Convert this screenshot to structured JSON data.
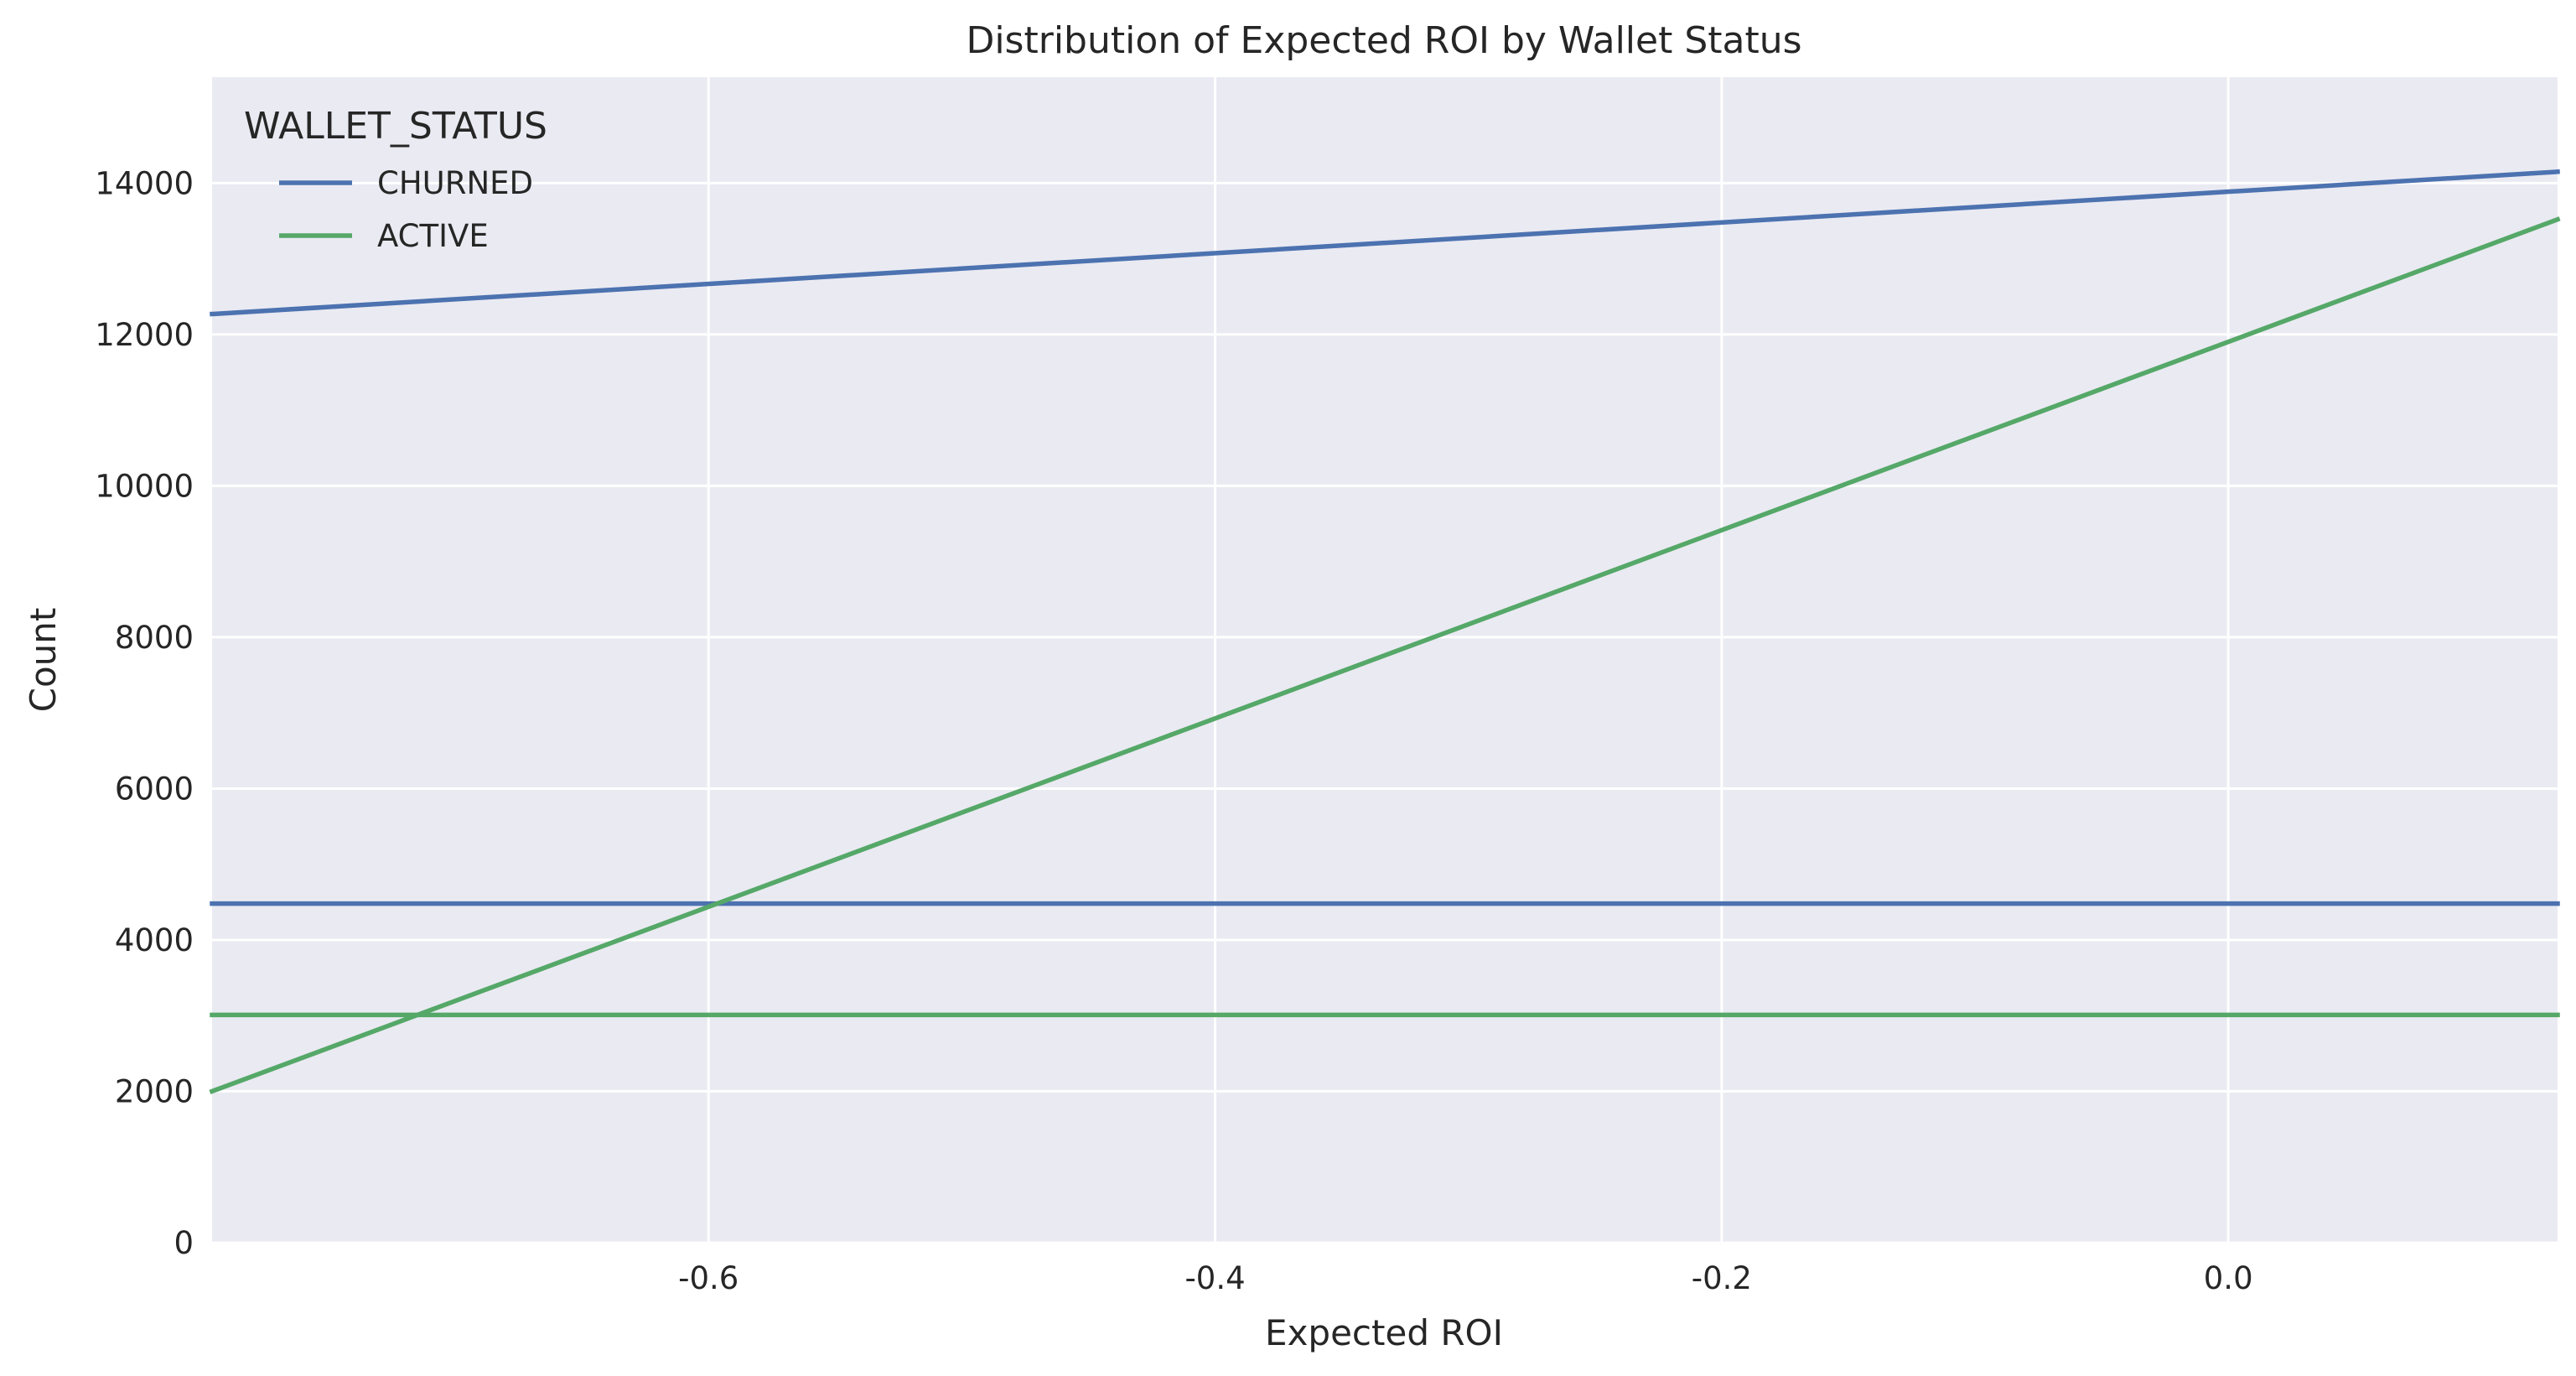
{
  "chart_data": {
    "type": "line",
    "title": "Distribution of Expected ROI by Wallet Status",
    "xlabel": "Expected ROI",
    "ylabel": "Count",
    "xlim": [
      -0.796,
      0.13
    ],
    "ylim": [
      0,
      15400
    ],
    "xticks": [
      -0.6,
      -0.4,
      -0.2,
      0.0
    ],
    "xtick_labels": [
      "-0.6",
      "-0.4",
      "-0.2",
      "0.0"
    ],
    "yticks": [
      0,
      2000,
      4000,
      6000,
      8000,
      10000,
      12000,
      14000
    ],
    "ytick_labels": [
      "0",
      "2000",
      "4000",
      "6000",
      "8000",
      "10000",
      "12000",
      "14000"
    ],
    "grid": true,
    "legend": {
      "title": "WALLET_STATUS",
      "position": "top-left"
    },
    "series": [
      {
        "name": "CHURNED",
        "color": "#4c72b0",
        "x": [
          -0.796,
          0.13
        ],
        "y": [
          12270,
          14150
        ]
      },
      {
        "name": "CHURNED",
        "color": "#4c72b0",
        "x": [
          -0.796,
          0.13
        ],
        "y": [
          4480,
          4480
        ]
      },
      {
        "name": "ACTIVE",
        "color": "#55a868",
        "x": [
          -0.796,
          0.13
        ],
        "y": [
          2000,
          13520
        ]
      },
      {
        "name": "ACTIVE",
        "color": "#55a868",
        "x": [
          -0.796,
          0.13
        ],
        "y": [
          3010,
          3010
        ]
      }
    ],
    "legend_entries": [
      {
        "name": "CHURNED",
        "color": "#4c72b0"
      },
      {
        "name": "ACTIVE",
        "color": "#55a868"
      }
    ]
  }
}
